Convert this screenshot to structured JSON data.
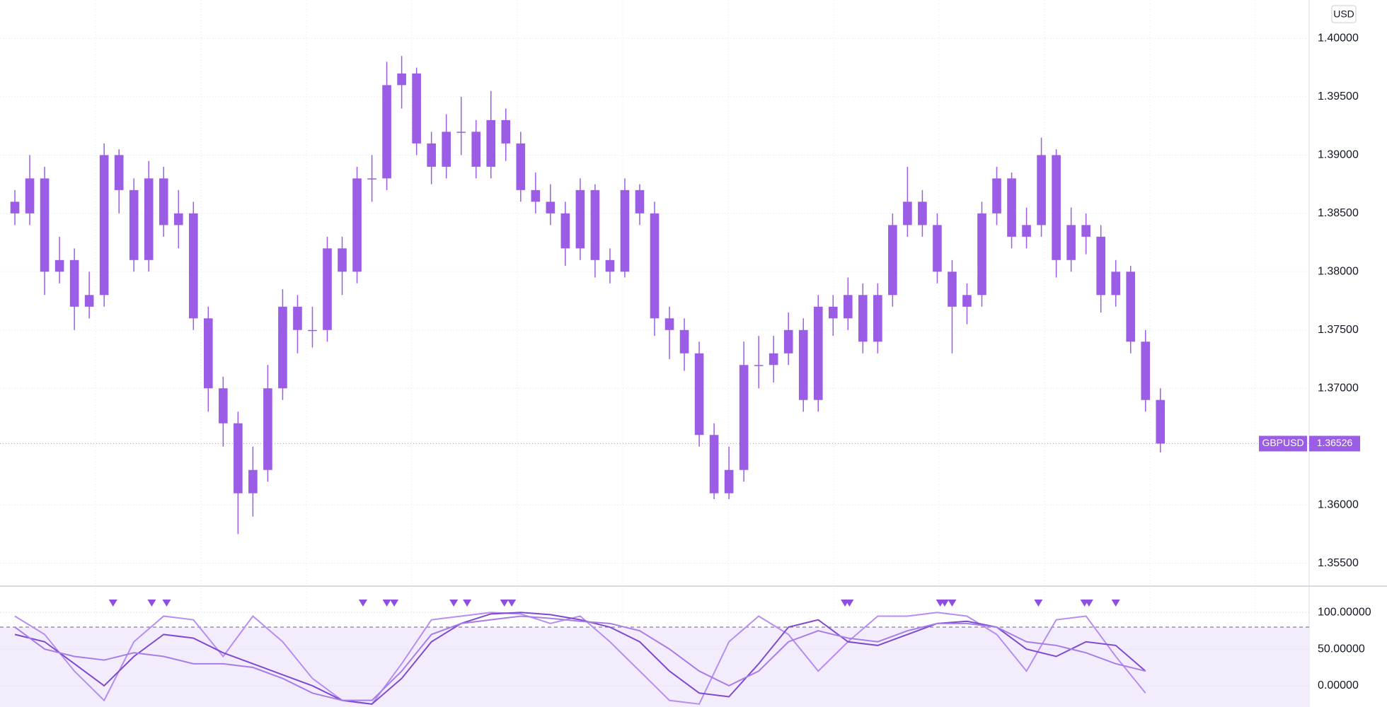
{
  "chart_data": [
    {
      "type": "candlestick",
      "currency": "USD",
      "color": "#9b5de5",
      "xlim": [
        -1,
        87
      ],
      "ylim": [
        1.3531,
        1.4033
      ],
      "yticks": [
        {
          "value": 1.355,
          "label": "1.35500"
        },
        {
          "value": 1.36,
          "label": "1.36000"
        },
        {
          "value": 1.37,
          "label": "1.37000"
        },
        {
          "value": 1.375,
          "label": "1.37500"
        },
        {
          "value": 1.38,
          "label": "1.38000"
        },
        {
          "value": 1.385,
          "label": "1.38500"
        },
        {
          "value": 1.39,
          "label": "1.39000"
        },
        {
          "value": 1.395,
          "label": "1.39500"
        },
        {
          "value": 1.4,
          "label": "1.40000"
        }
      ],
      "open": [
        1.386,
        1.385,
        1.388,
        1.38,
        1.381,
        1.377,
        1.378,
        1.39,
        1.387,
        1.381,
        1.388,
        1.384,
        1.385,
        1.376,
        1.37,
        1.367,
        1.361,
        1.363,
        1.37,
        1.377,
        1.375,
        1.375,
        1.382,
        1.38,
        1.388,
        1.388,
        1.396,
        1.397,
        1.391,
        1.389,
        1.392,
        1.392,
        1.389,
        1.393,
        1.391,
        1.387,
        1.386,
        1.385,
        1.382,
        1.387,
        1.381,
        1.38,
        1.387,
        1.385,
        1.376,
        1.375,
        1.373,
        1.366,
        1.361,
        1.363,
        1.372,
        1.372,
        1.373,
        1.375,
        1.369,
        1.377,
        1.376,
        1.378,
        1.374,
        1.378,
        1.384,
        1.386,
        1.384,
        1.38,
        1.377,
        1.378,
        1.385,
        1.388,
        1.383,
        1.384,
        1.39,
        1.381,
        1.384,
        1.383,
        1.378,
        1.38,
        1.374,
        1.369
      ],
      "high": [
        1.387,
        1.39,
        1.389,
        1.383,
        1.382,
        1.38,
        1.391,
        1.3905,
        1.388,
        1.3895,
        1.389,
        1.387,
        1.386,
        1.377,
        1.371,
        1.368,
        1.365,
        1.372,
        1.3785,
        1.378,
        1.377,
        1.383,
        1.383,
        1.389,
        1.39,
        1.398,
        1.3985,
        1.3975,
        1.392,
        1.3935,
        1.395,
        1.393,
        1.3955,
        1.394,
        1.392,
        1.3885,
        1.3875,
        1.386,
        1.388,
        1.3875,
        1.382,
        1.388,
        1.3875,
        1.386,
        1.377,
        1.376,
        1.374,
        1.367,
        1.365,
        1.374,
        1.3745,
        1.3745,
        1.3765,
        1.376,
        1.378,
        1.378,
        1.3795,
        1.379,
        1.379,
        1.385,
        1.389,
        1.387,
        1.385,
        1.381,
        1.379,
        1.386,
        1.389,
        1.3885,
        1.3855,
        1.3915,
        1.3905,
        1.3855,
        1.385,
        1.384,
        1.381,
        1.3805,
        1.375,
        1.37
      ],
      "low": [
        1.384,
        1.384,
        1.378,
        1.379,
        1.375,
        1.376,
        1.377,
        1.385,
        1.38,
        1.38,
        1.383,
        1.382,
        1.375,
        1.368,
        1.365,
        1.3575,
        1.359,
        1.362,
        1.369,
        1.373,
        1.3735,
        1.374,
        1.378,
        1.379,
        1.386,
        1.387,
        1.394,
        1.39,
        1.3875,
        1.388,
        1.39,
        1.388,
        1.388,
        1.3895,
        1.386,
        1.385,
        1.384,
        1.3805,
        1.381,
        1.3795,
        1.379,
        1.3795,
        1.384,
        1.3745,
        1.3725,
        1.3715,
        1.365,
        1.3605,
        1.3605,
        1.362,
        1.37,
        1.3705,
        1.372,
        1.368,
        1.368,
        1.3745,
        1.375,
        1.373,
        1.373,
        1.377,
        1.383,
        1.383,
        1.379,
        1.373,
        1.3755,
        1.377,
        1.384,
        1.382,
        1.382,
        1.383,
        1.3795,
        1.38,
        1.3815,
        1.3765,
        1.377,
        1.373,
        1.368,
        1.3645
      ],
      "close": [
        1.385,
        1.388,
        1.38,
        1.381,
        1.377,
        1.378,
        1.39,
        1.387,
        1.381,
        1.388,
        1.384,
        1.385,
        1.376,
        1.37,
        1.367,
        1.361,
        1.363,
        1.37,
        1.377,
        1.375,
        1.375,
        1.382,
        1.38,
        1.388,
        1.388,
        1.396,
        1.397,
        1.391,
        1.389,
        1.392,
        1.392,
        1.389,
        1.393,
        1.391,
        1.387,
        1.386,
        1.385,
        1.382,
        1.387,
        1.381,
        1.38,
        1.387,
        1.385,
        1.376,
        1.375,
        1.373,
        1.366,
        1.361,
        1.363,
        1.372,
        1.372,
        1.373,
        1.375,
        1.369,
        1.377,
        1.376,
        1.378,
        1.374,
        1.378,
        1.384,
        1.386,
        1.384,
        1.38,
        1.377,
        1.378,
        1.385,
        1.388,
        1.383,
        1.384,
        1.39,
        1.381,
        1.384,
        1.383,
        1.378,
        1.38,
        1.374,
        1.369,
        1.36526
      ],
      "last_price": {
        "symbol": "GBPUSD",
        "value": 1.36526
      }
    },
    {
      "type": "line",
      "xlim": [
        -1,
        87
      ],
      "ylim": [
        -29,
        135
      ],
      "level": 80,
      "yticks": [
        {
          "value": 0,
          "label": "0.00000"
        },
        {
          "value": 50,
          "label": "50.00000"
        },
        {
          "value": 100,
          "label": "100.00000"
        }
      ],
      "x": [
        0,
        2,
        4,
        6,
        8,
        10,
        12,
        14,
        16,
        18,
        20,
        22,
        24,
        26,
        28,
        30,
        32,
        34,
        36,
        38,
        40,
        42,
        44,
        46,
        48,
        50,
        52,
        54,
        56,
        58,
        60,
        62,
        64,
        66,
        68,
        70,
        72,
        74,
        76
      ],
      "series": [
        {
          "color": "#b68ef0",
          "values": [
            95,
            70,
            20,
            -20,
            60,
            95,
            90,
            40,
            95,
            60,
            10,
            -20,
            -25,
            30,
            90,
            95,
            100,
            98,
            85,
            95,
            60,
            20,
            -20,
            -25,
            60,
            95,
            70,
            20,
            60,
            95,
            95,
            100,
            95,
            70,
            20,
            90,
            95,
            40,
            -10
          ]
        },
        {
          "color": "#7e4bcf",
          "values": [
            70,
            60,
            30,
            0,
            40,
            70,
            65,
            45,
            30,
            15,
            0,
            -20,
            -25,
            10,
            60,
            85,
            98,
            100,
            97,
            90,
            80,
            60,
            20,
            -10,
            -15,
            30,
            80,
            90,
            60,
            55,
            70,
            85,
            88,
            80,
            50,
            40,
            60,
            55,
            20
          ]
        },
        {
          "color": "#a77de8",
          "values": [
            80,
            50,
            40,
            35,
            45,
            40,
            30,
            30,
            25,
            10,
            -10,
            -20,
            -20,
            20,
            70,
            85,
            90,
            95,
            92,
            88,
            85,
            75,
            50,
            20,
            0,
            20,
            60,
            75,
            65,
            60,
            75,
            85,
            85,
            80,
            60,
            55,
            45,
            30,
            20
          ]
        }
      ],
      "signals": {
        "color": "#8e4fe0",
        "x": [
          6.6,
          9.2,
          10.2,
          23.4,
          25,
          25.5,
          29.5,
          30.4,
          32.9,
          33.4,
          55.8,
          56.1,
          62.2,
          62.5,
          63,
          68.8,
          71.9,
          72.2,
          74
        ]
      }
    }
  ]
}
